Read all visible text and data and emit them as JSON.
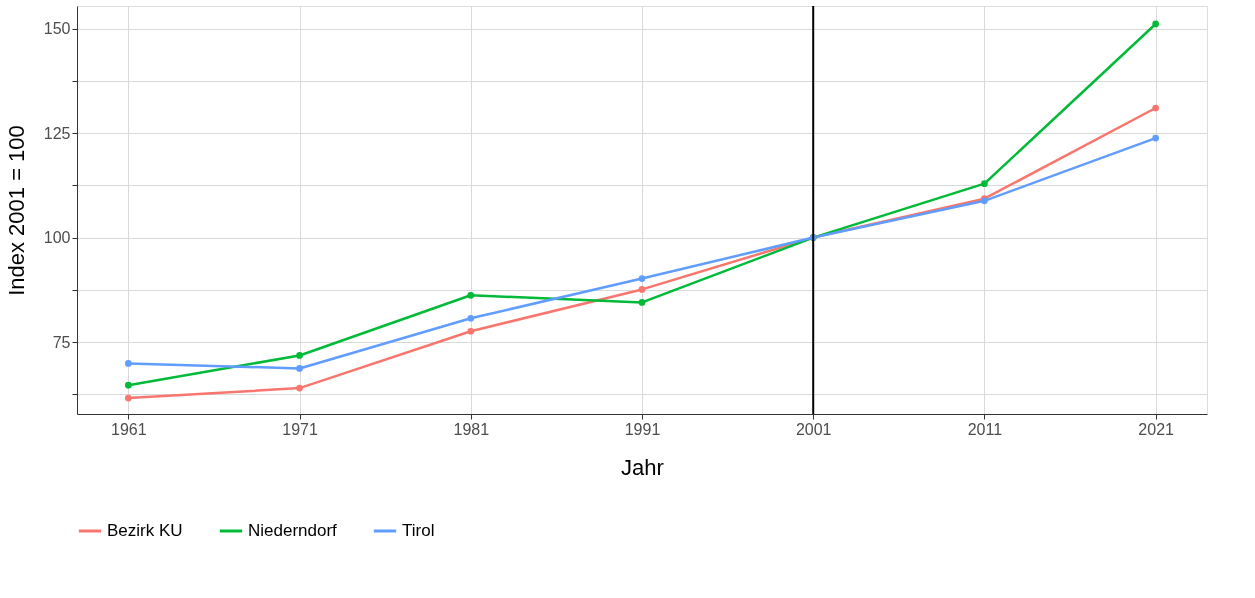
{
  "chart_data": {
    "type": "line",
    "xlabel": "Jahr",
    "ylabel": "Index 2001 = 100",
    "x": [
      1961,
      1971,
      1981,
      1991,
      2001,
      2011,
      2021
    ],
    "series": [
      {
        "name": "Bezirk KU",
        "color": "#f8766d",
        "values": [
          61.6,
          64.0,
          77.6,
          87.6,
          100,
          109.3,
          131.0
        ]
      },
      {
        "name": "Niederndorf",
        "color": "#00ba38",
        "values": [
          64.7,
          71.8,
          86.2,
          84.5,
          100,
          112.9,
          151.1
        ]
      },
      {
        "name": "Tirol",
        "color": "#619cff",
        "values": [
          69.9,
          68.7,
          80.7,
          90.2,
          100,
          108.8,
          123.8
        ]
      }
    ],
    "xlim": [
      1958,
      2024
    ],
    "xticks": [
      1961,
      1971,
      1981,
      1991,
      2001,
      2011,
      2021
    ],
    "ylim": [
      57.8,
      155.4
    ],
    "yticks": [
      {
        "value": 62.5,
        "label": null
      },
      75,
      {
        "value": 87.5,
        "label": null
      },
      100,
      {
        "value": 112.5,
        "label": null
      },
      125,
      {
        "value": 137.5,
        "label": null
      },
      150
    ],
    "ref_lines": [
      {
        "axis": "x",
        "value": 2001,
        "color": "#000000"
      }
    ],
    "grid": true,
    "legend": "bottom",
    "marker": "circle",
    "line_style": "solid"
  }
}
